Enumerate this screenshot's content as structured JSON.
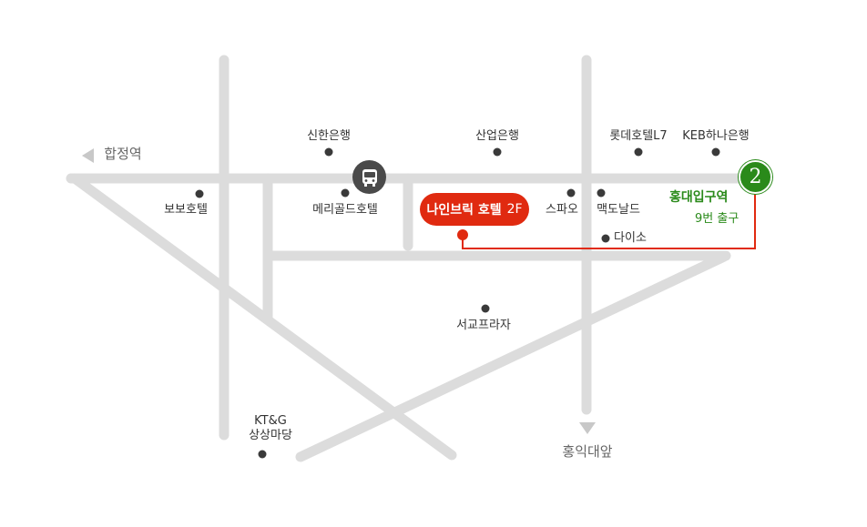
{
  "destination": {
    "name": "나인브릭 호텔",
    "floor": "2F",
    "color": "#e02a10"
  },
  "station_exit": {
    "number": "2",
    "station": "홍대입구역",
    "exit_label": "9번 출구",
    "color": "#2a8a1a"
  },
  "directions": {
    "west": "합정역",
    "south": "홍익대앞"
  },
  "landmarks": {
    "shinhan_bank": "신한은행",
    "sanup_bank": "산업은행",
    "lotte_hotel": "롯데호텔L7",
    "keb_hana_bank": "KEB하나은행",
    "bobo_hotel": "보보호텔",
    "merigold_hotel": "메리골드호텔",
    "spao": "스파오",
    "mcdonalds": "맥도날드",
    "daiso": "다이소",
    "seogyo_plaza": "서교프라자",
    "ktg_line1": "KT&G",
    "ktg_line2": "상상마당"
  },
  "icons": {
    "bus_stop": "bus-icon",
    "direction_west": "arrow-left-icon",
    "direction_south": "arrow-down-icon"
  },
  "colors": {
    "road": "#dcdcdc",
    "route": "#e02a10"
  }
}
